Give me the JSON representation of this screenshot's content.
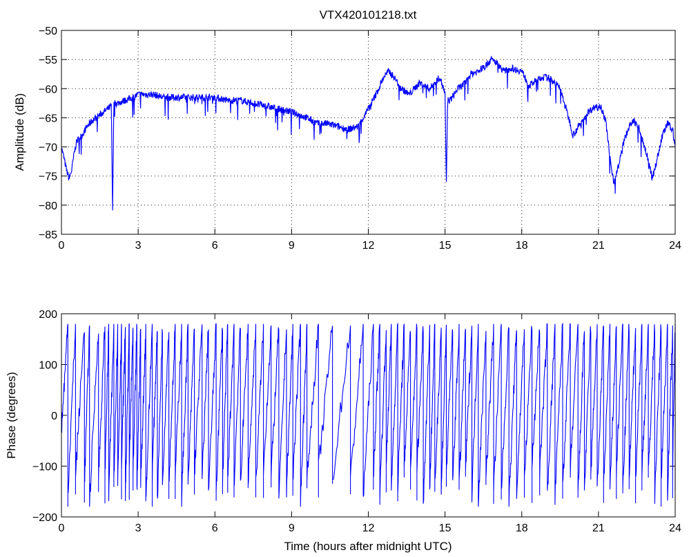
{
  "colors": {
    "line": "#0000ff",
    "axes": "#000000",
    "background": "#ffffff"
  },
  "chart_data": [
    {
      "type": "line",
      "title": "VTX420101218.txt",
      "xlabel": "",
      "ylabel": "Amplitude (dB)",
      "xlim": [
        0,
        24
      ],
      "ylim": [
        -85,
        -50
      ],
      "xticks": [
        "0",
        "3",
        "6",
        "9",
        "12",
        "15",
        "18",
        "21",
        "24"
      ],
      "yticks": [
        "-50",
        "-55",
        "-60",
        "-65",
        "-70",
        "-75",
        "-80",
        "-85"
      ],
      "grid": true,
      "series": [
        {
          "x": [
            0,
            0.1,
            0.2,
            0.3,
            0.4,
            0.5,
            0.6,
            0.8,
            1.0,
            1.2,
            1.5,
            1.8,
            1.95,
            2.0,
            2.05,
            2.1,
            2.2,
            2.5,
            2.8,
            3.0,
            3.3,
            3.6,
            4.0,
            4.5,
            5.0,
            5.5,
            6.0,
            6.5,
            7.0,
            7.5,
            8.0,
            8.5,
            9.0,
            9.3,
            9.6,
            10.0,
            10.4,
            10.8,
            11.2,
            11.6,
            12.0,
            12.3,
            12.6,
            12.8,
            13.0,
            13.3,
            13.6,
            14.0,
            14.4,
            14.8,
            15.0,
            15.05,
            15.1,
            15.2,
            15.5,
            15.8,
            16.0,
            16.3,
            16.6,
            16.8,
            17.0,
            17.3,
            17.6,
            18.0,
            18.3,
            18.6,
            18.9,
            19.2,
            19.5,
            19.7,
            19.9,
            20.0,
            20.3,
            20.6,
            20.9,
            21.1,
            21.3,
            21.45,
            21.6,
            21.8,
            22.0,
            22.2,
            22.4,
            22.6,
            22.8,
            23.0,
            23.1,
            23.3,
            23.5,
            23.7,
            23.9,
            24.0
          ],
          "y": [
            -70,
            -72,
            -74,
            -75.5,
            -74,
            -71,
            -69,
            -68,
            -66.5,
            -65.5,
            -64.5,
            -63.5,
            -63,
            -81,
            -62,
            -62.5,
            -62.5,
            -62,
            -61.5,
            -61,
            -61,
            -61,
            -61.5,
            -61.5,
            -61.5,
            -61.5,
            -61.5,
            -62,
            -62,
            -62.5,
            -63,
            -63.5,
            -64,
            -64.5,
            -65,
            -66,
            -66,
            -66.5,
            -67,
            -66.5,
            -63.5,
            -61,
            -58,
            -57,
            -58,
            -60,
            -61,
            -59,
            -60,
            -58,
            -61,
            -77,
            -62,
            -62,
            -60,
            -59,
            -57.5,
            -57,
            -56,
            -55,
            -55.5,
            -57,
            -56.5,
            -57,
            -59.5,
            -58.5,
            -58,
            -58.5,
            -60,
            -63,
            -66,
            -68,
            -66,
            -64,
            -63,
            -63,
            -66,
            -72,
            -76,
            -73,
            -69,
            -66.5,
            -65.5,
            -67,
            -70,
            -73,
            -75.5,
            -72,
            -68,
            -66,
            -67,
            -70
          ]
        }
      ]
    },
    {
      "type": "line",
      "title": "",
      "xlabel": "Time (hours after midnight UTC)",
      "ylabel": "Phase (degrees)",
      "xlim": [
        0,
        24
      ],
      "ylim": [
        -200,
        200
      ],
      "xticks": [
        "0",
        "3",
        "6",
        "9",
        "12",
        "15",
        "18",
        "21",
        "24"
      ],
      "yticks": [
        "200",
        "100",
        "0",
        "-100",
        "-200"
      ],
      "grid": false,
      "phase_wraps": [
        0.25,
        0.55,
        0.9,
        1.1,
        1.45,
        1.7,
        1.85,
        2.05,
        2.2,
        2.35,
        2.5,
        2.65,
        2.8,
        2.95,
        3.1,
        3.3,
        3.55,
        3.75,
        3.95,
        4.2,
        4.45,
        4.7,
        4.95,
        5.2,
        5.5,
        5.75,
        6.05,
        6.3,
        6.5,
        6.75,
        7.0,
        7.3,
        7.6,
        7.9,
        8.2,
        8.5,
        8.8,
        9.05,
        9.35,
        9.6,
        10.05,
        10.6,
        11.3,
        11.8,
        12.2,
        12.45,
        12.7,
        12.9,
        13.15,
        13.4,
        13.65,
        13.9,
        14.15,
        14.4,
        14.6,
        14.85,
        15.05,
        15.3,
        15.55,
        15.8,
        16.05,
        16.3,
        16.6,
        16.9,
        17.2,
        17.5,
        17.8,
        18.1,
        18.4,
        18.7,
        19.0,
        19.3,
        19.6,
        19.9,
        20.2,
        20.45,
        20.7,
        20.95,
        21.2,
        21.45,
        21.7,
        21.95,
        22.2,
        22.45,
        22.7,
        22.95,
        23.2,
        23.45,
        23.7,
        23.9
      ]
    }
  ]
}
